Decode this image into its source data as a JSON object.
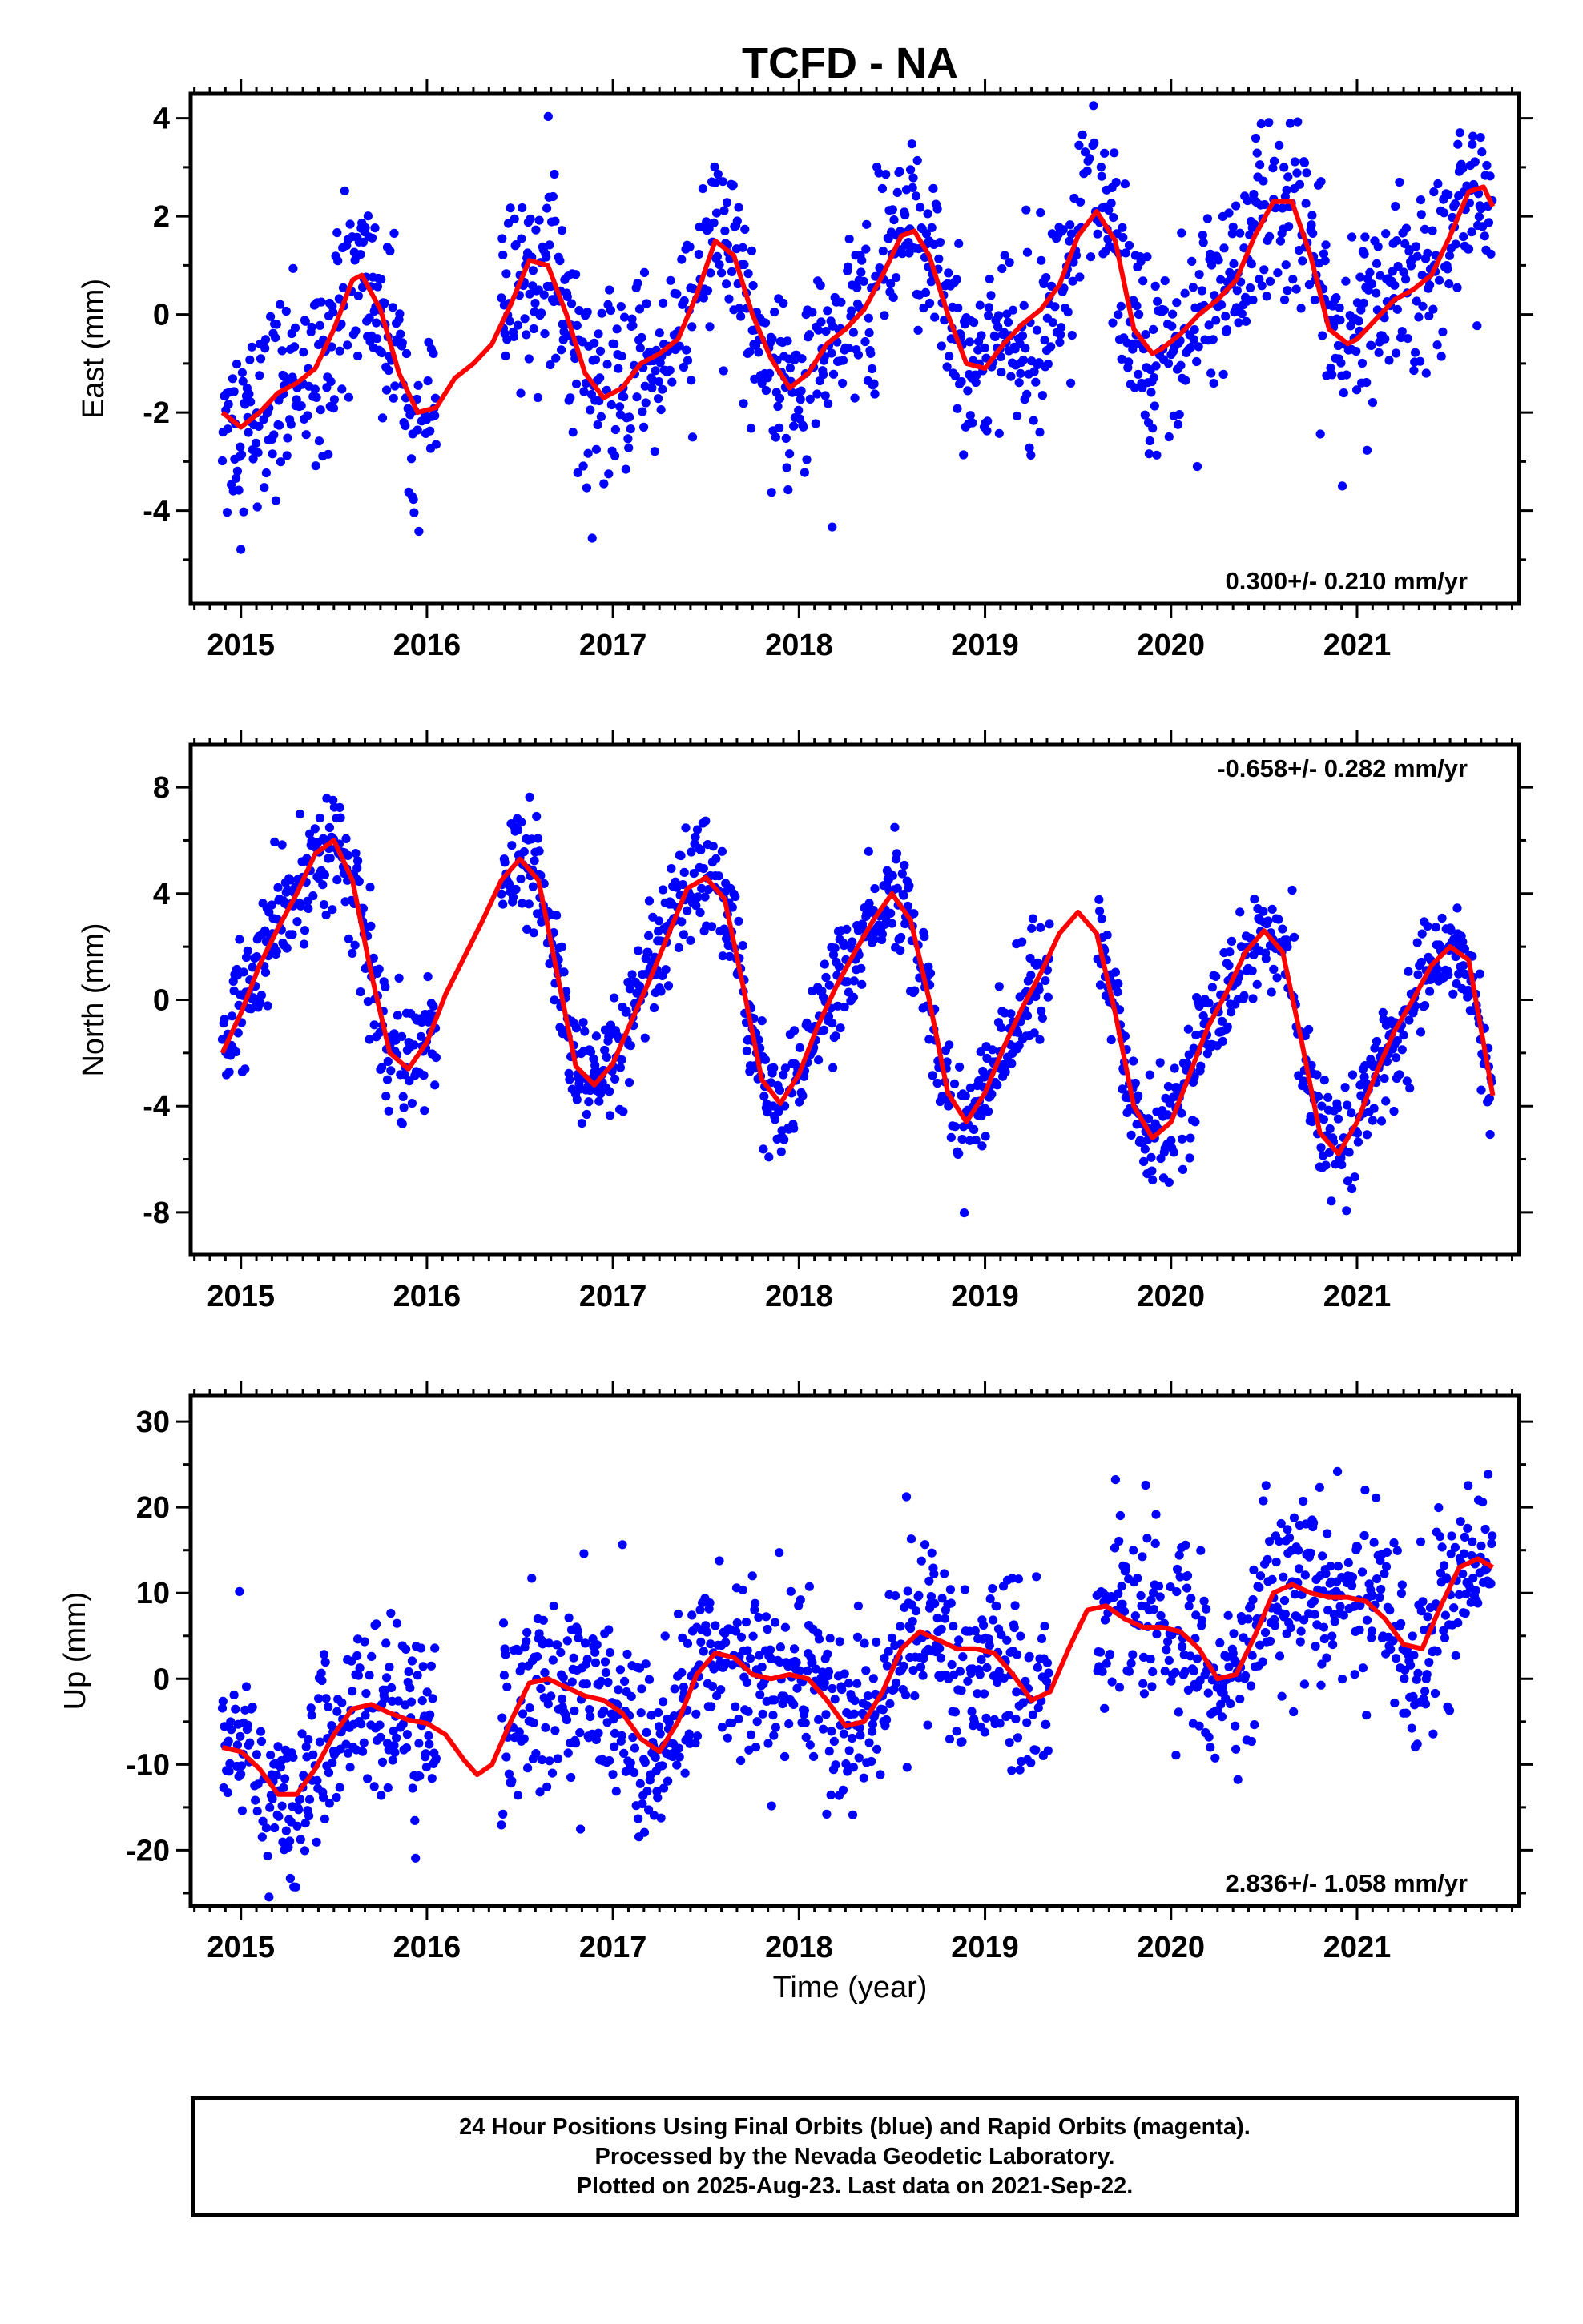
{
  "title": "TCFD - NA",
  "xlabel": "Time (year)",
  "colors": {
    "points": "#0000ff",
    "model": "#ff0000",
    "frame": "#000000"
  },
  "footer": {
    "lines": [
      "24 Hour Positions Using Final Orbits (blue) and Rapid Orbits (magenta).",
      "Processed by the Nevada Geodetic Laboratory.",
      "Plotted on 2025-Aug-23. Last data on 2021-Sep-22."
    ]
  },
  "chart_data": [
    {
      "type": "scatter",
      "ylabel": "East (mm)",
      "rate_label": "0.300+/- 0.210 mm/yr",
      "rate_position": "bottom-right",
      "xlim": [
        2014.73,
        2021.87
      ],
      "ylim": [
        -5.9,
        4.5
      ],
      "x_ticks": [
        "2015",
        "2016",
        "2017",
        "2018",
        "2019",
        "2020",
        "2021"
      ],
      "y_ticks": [
        -4,
        -2,
        0,
        2,
        4
      ],
      "data_range": [
        2014.9,
        2021.73
      ],
      "gaps": [
        [
          2016.05,
          2016.4
        ]
      ],
      "model_curve": {
        "x": [
          2014.9,
          2015.0,
          2015.1,
          2015.2,
          2015.3,
          2015.4,
          2015.5,
          2015.6,
          2015.65,
          2015.75,
          2015.85,
          2015.95,
          2016.05,
          2016.15,
          2016.25,
          2016.35,
          2016.45,
          2016.55,
          2016.65,
          2016.75,
          2016.85,
          2016.95,
          2017.05,
          2017.15,
          2017.25,
          2017.35,
          2017.45,
          2017.55,
          2017.65,
          2017.75,
          2017.85,
          2017.95,
          2018.05,
          2018.15,
          2018.25,
          2018.35,
          2018.45,
          2018.55,
          2018.62,
          2018.7,
          2018.8,
          2018.9,
          2019.0,
          2019.1,
          2019.2,
          2019.3,
          2019.4,
          2019.5,
          2019.6,
          2019.7,
          2019.8,
          2019.9,
          2019.95,
          2020.05,
          2020.15,
          2020.25,
          2020.35,
          2020.45,
          2020.55,
          2020.65,
          2020.75,
          2020.85,
          2020.95,
          2021.0,
          2021.1,
          2021.2,
          2021.3,
          2021.4,
          2021.5,
          2021.6,
          2021.68,
          2021.73
        ],
        "y": [
          -2.0,
          -2.3,
          -2.0,
          -1.6,
          -1.4,
          -1.1,
          -0.3,
          0.7,
          0.8,
          0.1,
          -1.2,
          -2.0,
          -1.9,
          -1.3,
          -1.0,
          -0.6,
          0.2,
          1.1,
          1.0,
          0.0,
          -1.2,
          -1.7,
          -1.5,
          -1.0,
          -0.8,
          -0.5,
          0.4,
          1.5,
          1.2,
          0.0,
          -0.9,
          -1.5,
          -1.2,
          -0.6,
          -0.3,
          0.1,
          0.8,
          1.6,
          1.7,
          1.2,
          0.0,
          -1.0,
          -1.1,
          -0.6,
          -0.2,
          0.1,
          0.6,
          1.6,
          2.1,
          1.5,
          -0.3,
          -0.8,
          -0.7,
          -0.4,
          0.0,
          0.3,
          0.7,
          1.6,
          2.3,
          2.3,
          1.2,
          -0.3,
          -0.6,
          -0.5,
          -0.1,
          0.3,
          0.5,
          0.8,
          1.6,
          2.5,
          2.6,
          2.2
        ]
      }
    },
    {
      "type": "scatter",
      "ylabel": "North (mm)",
      "rate_label": "-0.658+/- 0.282 mm/yr",
      "rate_position": "top-right",
      "xlim": [
        2014.73,
        2021.87
      ],
      "ylim": [
        -9.6,
        9.6
      ],
      "x_ticks": [
        "2015",
        "2016",
        "2017",
        "2018",
        "2019",
        "2020",
        "2021"
      ],
      "y_ticks": [
        -8,
        -4,
        0,
        4,
        8
      ],
      "data_range": [
        2014.9,
        2021.73
      ],
      "gaps": [
        [
          2016.05,
          2016.4
        ],
        [
          2019.35,
          2019.6
        ]
      ],
      "model_curve": {
        "x": [
          2014.9,
          2015.0,
          2015.1,
          2015.2,
          2015.3,
          2015.4,
          2015.5,
          2015.6,
          2015.7,
          2015.8,
          2015.9,
          2016.0,
          2016.1,
          2016.2,
          2016.3,
          2016.4,
          2016.5,
          2016.6,
          2016.7,
          2016.8,
          2016.9,
          2017.0,
          2017.1,
          2017.2,
          2017.3,
          2017.4,
          2017.5,
          2017.6,
          2017.7,
          2017.8,
          2017.9,
          2018.0,
          2018.1,
          2018.2,
          2018.3,
          2018.4,
          2018.5,
          2018.6,
          2018.7,
          2018.8,
          2018.9,
          2019.0,
          2019.1,
          2019.2,
          2019.3,
          2019.4,
          2019.5,
          2019.6,
          2019.7,
          2019.8,
          2019.9,
          2020.0,
          2020.1,
          2020.2,
          2020.3,
          2020.4,
          2020.5,
          2020.6,
          2020.7,
          2020.8,
          2020.9,
          2021.0,
          2021.1,
          2021.2,
          2021.3,
          2021.4,
          2021.5,
          2021.6,
          2021.73
        ],
        "y": [
          -2.0,
          -0.5,
          1.3,
          2.7,
          4.0,
          5.5,
          6.0,
          4.5,
          1.0,
          -2.0,
          -2.6,
          -1.6,
          0.2,
          1.6,
          3.0,
          4.5,
          5.3,
          4.5,
          1.0,
          -2.5,
          -3.2,
          -2.4,
          -0.8,
          0.8,
          2.5,
          4.2,
          4.6,
          3.8,
          0.5,
          -3.0,
          -3.9,
          -2.8,
          -1.0,
          0.5,
          1.8,
          3.0,
          4.0,
          3.0,
          0.0,
          -3.5,
          -4.6,
          -3.5,
          -1.8,
          -0.3,
          1.0,
          2.5,
          3.3,
          2.5,
          -0.5,
          -4.0,
          -5.2,
          -4.6,
          -2.8,
          -1.0,
          0.3,
          1.8,
          2.6,
          1.8,
          -1.5,
          -5.0,
          -5.8,
          -4.6,
          -2.8,
          -1.2,
          0.0,
          1.3,
          2.0,
          1.5,
          -3.6
        ]
      }
    },
    {
      "type": "scatter",
      "ylabel": "Up (mm)",
      "rate_label": "2.836+/- 1.058 mm/yr",
      "rate_position": "bottom-right",
      "xlim": [
        2014.73,
        2021.87
      ],
      "ylim": [
        -26.5,
        33.0
      ],
      "x_ticks": [
        "2015",
        "2016",
        "2017",
        "2018",
        "2019",
        "2020",
        "2021"
      ],
      "y_ticks": [
        -20,
        -10,
        0,
        10,
        20,
        30
      ],
      "data_range": [
        2014.9,
        2021.73
      ],
      "gaps": [
        [
          2016.05,
          2016.4
        ],
        [
          2019.35,
          2019.6
        ]
      ],
      "model_curve": {
        "x": [
          2014.9,
          2015.0,
          2015.1,
          2015.2,
          2015.3,
          2015.4,
          2015.5,
          2015.6,
          2015.7,
          2015.8,
          2015.9,
          2016.0,
          2016.1,
          2016.2,
          2016.27,
          2016.35,
          2016.45,
          2016.55,
          2016.65,
          2016.75,
          2016.85,
          2016.95,
          2017.05,
          2017.15,
          2017.25,
          2017.35,
          2017.45,
          2017.55,
          2017.65,
          2017.75,
          2017.85,
          2017.95,
          2018.05,
          2018.15,
          2018.25,
          2018.35,
          2018.45,
          2018.55,
          2018.65,
          2018.75,
          2018.85,
          2018.95,
          2019.05,
          2019.15,
          2019.25,
          2019.35,
          2019.45,
          2019.55,
          2019.65,
          2019.75,
          2019.85,
          2019.95,
          2020.05,
          2020.15,
          2020.25,
          2020.35,
          2020.45,
          2020.55,
          2020.65,
          2020.75,
          2020.85,
          2020.95,
          2021.05,
          2021.15,
          2021.25,
          2021.35,
          2021.45,
          2021.55,
          2021.65,
          2021.73
        ],
        "y": [
          -8.0,
          -8.5,
          -10.5,
          -13.5,
          -13.5,
          -10.5,
          -6.5,
          -3.5,
          -3.0,
          -4.0,
          -4.8,
          -5.2,
          -6.5,
          -9.5,
          -11.2,
          -10.0,
          -5.0,
          -0.5,
          0.0,
          -1.0,
          -2.0,
          -2.5,
          -4.0,
          -7.0,
          -8.5,
          -5.0,
          0.5,
          3.0,
          2.5,
          0.5,
          0.0,
          0.5,
          0.0,
          -2.5,
          -5.5,
          -5.0,
          -1.5,
          3.5,
          5.5,
          4.5,
          3.5,
          3.5,
          3.0,
          0.5,
          -2.5,
          -1.5,
          3.5,
          8.0,
          8.5,
          7.0,
          6.0,
          6.0,
          5.5,
          3.5,
          0.0,
          0.5,
          5.0,
          10.0,
          11.0,
          10.0,
          9.5,
          9.5,
          9.0,
          7.0,
          4.0,
          3.5,
          8.5,
          13.0,
          14.0,
          13.0
        ]
      }
    }
  ]
}
